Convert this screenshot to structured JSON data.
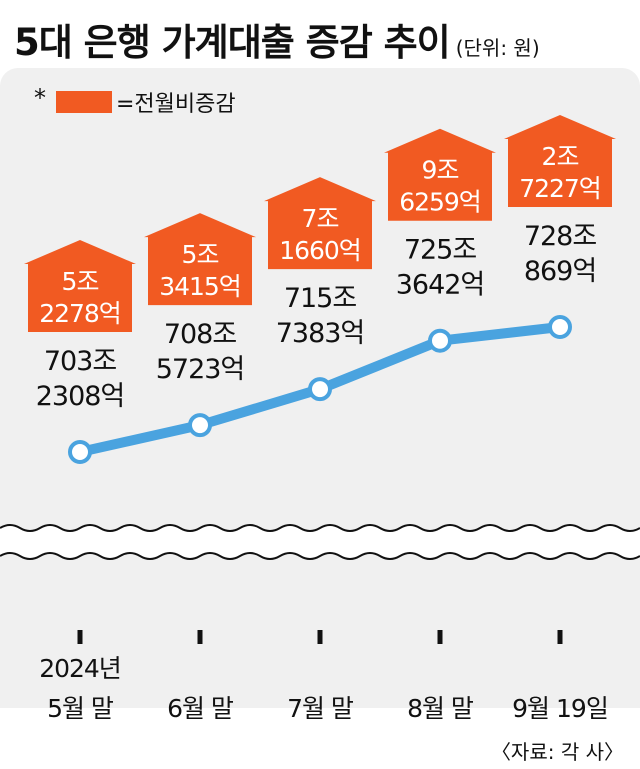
{
  "title": "5대 은행 가계대출 증감 추이",
  "unit": "(단위: 원)",
  "legend": {
    "marker": "*",
    "label": "=전월비증감"
  },
  "source": "〈자료: 각 사〉",
  "colors": {
    "line": "#4aa3df",
    "badge": "#f15a22",
    "badge_text": "#ffffff",
    "panel": "#f0f0f0"
  },
  "chart_data": {
    "type": "line",
    "x": [
      "5월 말",
      "6월 말",
      "7월 말",
      "8월 말",
      "9월 19일"
    ],
    "x_year_label": "2024년",
    "values": [
      7032308,
      7085723,
      7157383,
      7253642,
      7280869
    ],
    "value_unit": "억 원",
    "value_labels": [
      [
        "703조",
        "2308억"
      ],
      [
        "708조",
        "5723억"
      ],
      [
        "715조",
        "7383억"
      ],
      [
        "725조",
        "3642억"
      ],
      [
        "728조",
        "869억"
      ]
    ],
    "monthly_change": [
      53415,
      71660,
      96259,
      27227
    ],
    "monthly_change_unit": "억 원",
    "monthly_change_labels": [
      [
        "5조",
        "2278억"
      ],
      [
        "5조",
        "3415억"
      ],
      [
        "7조",
        "1660억"
      ],
      [
        "9조",
        "6259억"
      ],
      [
        "2조",
        "7227억"
      ]
    ],
    "y_axis_broken": true,
    "grid": false
  }
}
